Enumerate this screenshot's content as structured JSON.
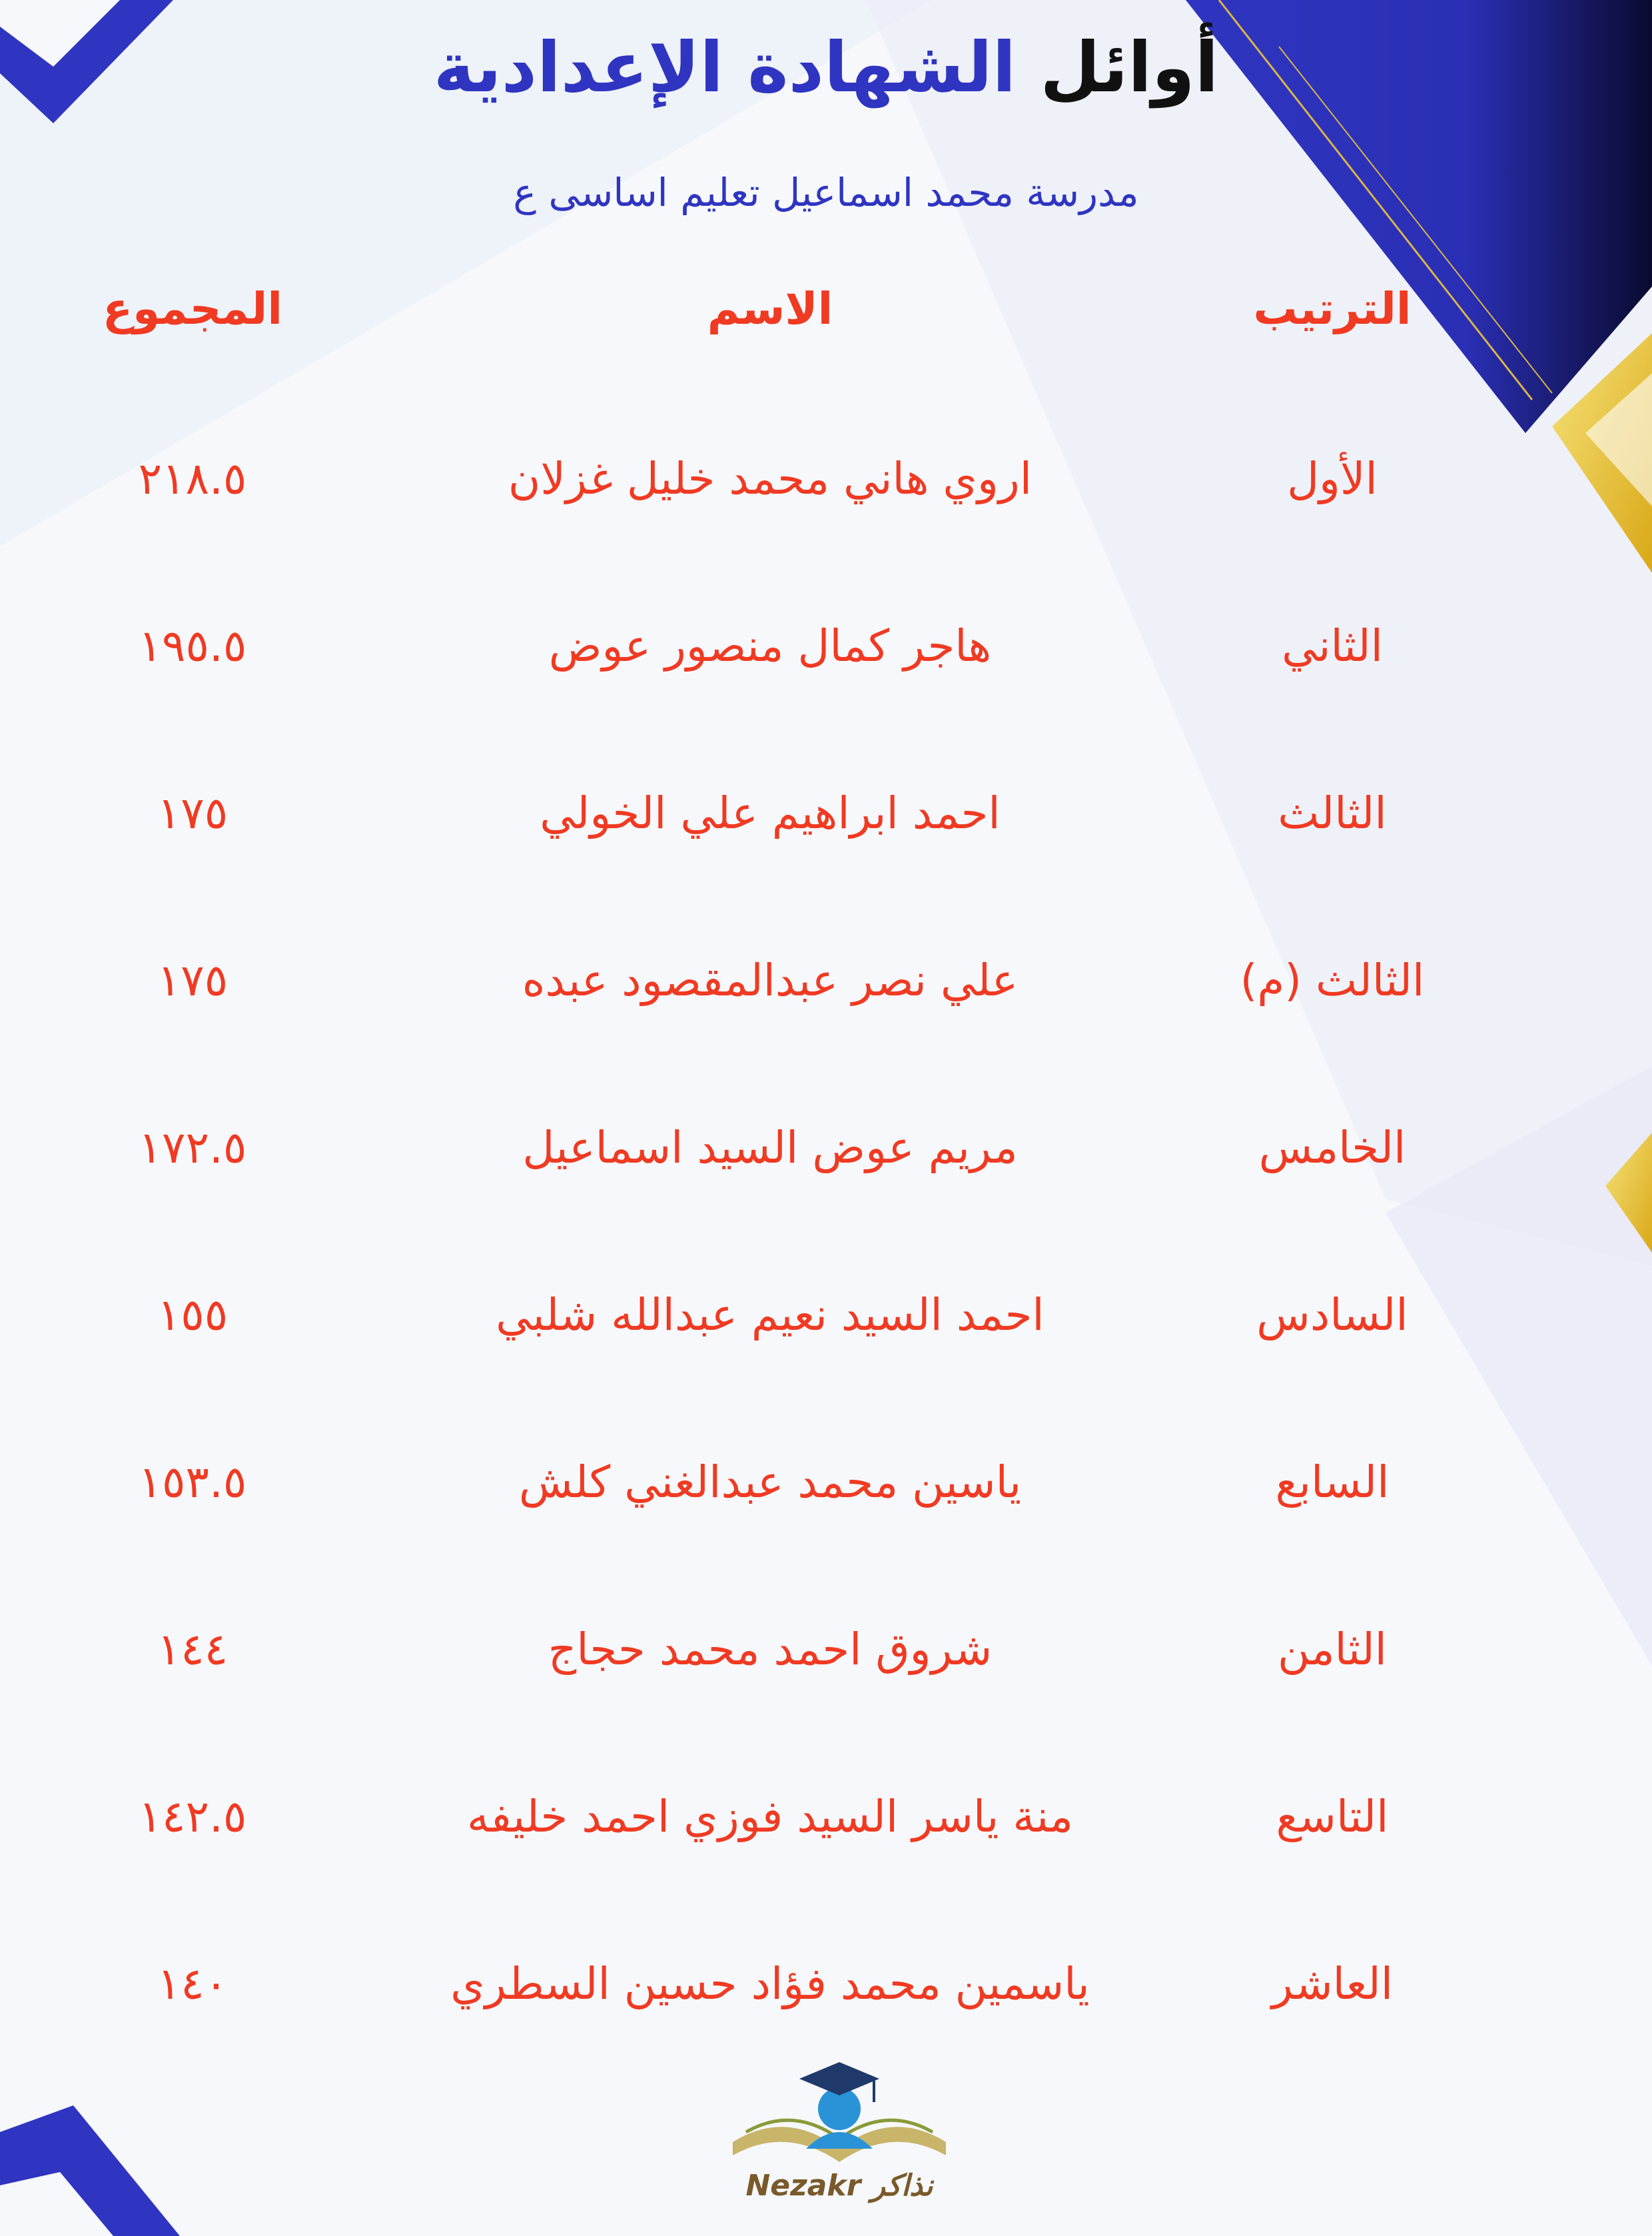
{
  "title": {
    "part1": "أوائل",
    "part2": "الشهادة الإعدادية"
  },
  "subtitle": "مدرسة محمد اسماعيل تعليم اساسى ع",
  "headers": {
    "rank": "الترتيب",
    "name": "الاسم",
    "total": "المجموع"
  },
  "rows": [
    {
      "rank": "الأول",
      "name": "اروي هاني محمد خليل غزلان",
      "total": "٢١٨.٥"
    },
    {
      "rank": "الثاني",
      "name": "هاجر كمال منصور عوض",
      "total": "١٩٥.٥"
    },
    {
      "rank": "الثالث",
      "name": "احمد ابراهيم علي الخولي",
      "total": "١٧٥"
    },
    {
      "rank": "الثالث (م)",
      "name": "علي نصر عبدالمقصود عبده",
      "total": "١٧٥"
    },
    {
      "rank": "الخامس",
      "name": "مريم عوض السيد اسماعيل",
      "total": "١٧٢.٥"
    },
    {
      "rank": "السادس",
      "name": "احمد السيد نعيم عبدالله شلبي",
      "total": "١٥٥"
    },
    {
      "rank": "السابع",
      "name": "ياسين محمد عبدالغني كلش",
      "total": "١٥٣.٥"
    },
    {
      "rank": "الثامن",
      "name": "شروق احمد محمد حجاج",
      "total": "١٤٤"
    },
    {
      "rank": "التاسع",
      "name": "منة ياسر السيد فوزي احمد خليفه",
      "total": "١٤٢.٥"
    },
    {
      "rank": "العاشر",
      "name": "ياسمين محمد فؤاد حسين السطري",
      "total": "١٤٠"
    }
  ],
  "logo": {
    "text": "Nezakr نذاكر"
  },
  "colors": {
    "accent_blue": "#2f35c0",
    "text_red": "#f03a22",
    "gold": "#e8c23a"
  }
}
